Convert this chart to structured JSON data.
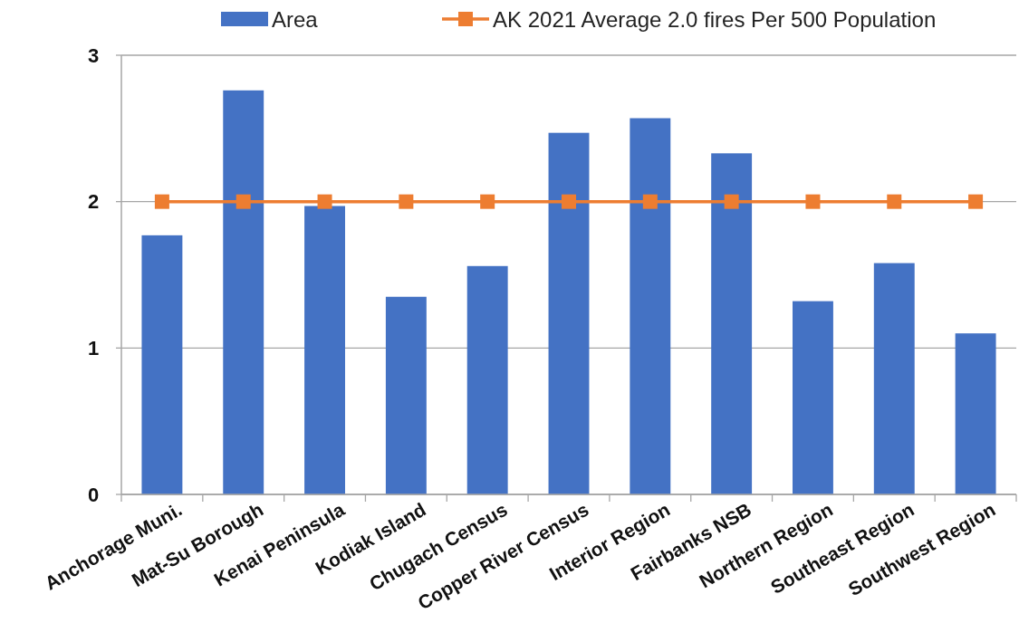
{
  "chart_data": {
    "type": "bar",
    "categories": [
      "Anchorage Muni.",
      "Mat-Su Borough",
      "Kenai Peninsula",
      "Kodiak Island",
      "Chugach Census",
      "Copper River Census",
      "Interior Region",
      "Fairbanks NSB",
      "Northern Region",
      "Southeast Region",
      "Southwest Region"
    ],
    "series": [
      {
        "name": "Area",
        "color": "#4472c4",
        "values": [
          1.77,
          2.76,
          1.97,
          1.35,
          1.56,
          2.47,
          2.57,
          2.33,
          1.32,
          1.58,
          1.1
        ]
      },
      {
        "name": "AK 2021 Average 2.0 fires Per 500 Population",
        "type": "line",
        "color": "#ed7d31",
        "values": [
          2,
          2,
          2,
          2,
          2,
          2,
          2,
          2,
          2,
          2,
          2
        ]
      }
    ],
    "ylim": [
      0,
      3
    ],
    "yticks": [
      0,
      1,
      2,
      3
    ],
    "grid": "y",
    "legend": "top",
    "marker": "square"
  }
}
